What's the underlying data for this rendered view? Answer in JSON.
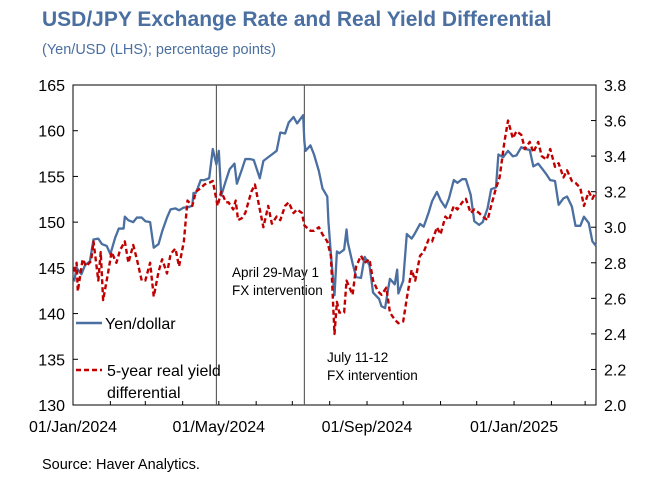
{
  "title": "USD/JPY Exchange Rate and Real Yield Differential",
  "subtitle": "(Yen/USD (LHS); percentage points)",
  "source": "Source: Haver Analytics.",
  "chart_data": {
    "type": "line",
    "x_ticks": [
      "01/Jan/2024",
      "01/May/2024",
      "01/Sep/2024",
      "01/Jan/2025"
    ],
    "x_range": [
      "2024-01-01",
      "2025-03-10"
    ],
    "y_left": {
      "min": 130,
      "max": 165,
      "ticks": [
        "130",
        "135",
        "140",
        "145",
        "150",
        "155",
        "160",
        "165"
      ]
    },
    "y_right": {
      "min": 2.0,
      "max": 3.8,
      "ticks": [
        "2.0",
        "2.2",
        "2.4",
        "2.6",
        "2.8",
        "3.0",
        "3.2",
        "3.4",
        "3.6",
        "3.8"
      ]
    },
    "grid": false,
    "annotations": [
      {
        "date": "2024-04-29",
        "lines": [
          "April 29-May 1",
          "FX intervention"
        ]
      },
      {
        "date": "2024-07-11",
        "lines": [
          "July 11-12",
          "FX intervention"
        ]
      }
    ],
    "series": [
      {
        "name": "Yen/dollar",
        "axis": "left",
        "color": "#4a6fa0",
        "style": "solid",
        "points": [
          [
            "2024-01-02",
            143.5
          ],
          [
            "2024-01-04",
            145.0
          ],
          [
            "2024-01-08",
            144.3
          ],
          [
            "2024-01-11",
            145.3
          ],
          [
            "2024-01-15",
            145.7
          ],
          [
            "2024-01-18",
            148.1
          ],
          [
            "2024-01-22",
            148.2
          ],
          [
            "2024-01-25",
            147.6
          ],
          [
            "2024-01-29",
            147.4
          ],
          [
            "2024-02-01",
            146.5
          ],
          [
            "2024-02-05",
            148.3
          ],
          [
            "2024-02-08",
            149.3
          ],
          [
            "2024-02-12",
            149.3
          ],
          [
            "2024-02-13",
            150.6
          ],
          [
            "2024-02-16",
            150.2
          ],
          [
            "2024-02-20",
            150.0
          ],
          [
            "2024-02-23",
            150.5
          ],
          [
            "2024-02-27",
            150.5
          ],
          [
            "2024-03-01",
            150.1
          ],
          [
            "2024-03-05",
            150.0
          ],
          [
            "2024-03-08",
            147.2
          ],
          [
            "2024-03-12",
            147.6
          ],
          [
            "2024-03-15",
            149.0
          ],
          [
            "2024-03-19",
            150.5
          ],
          [
            "2024-03-22",
            151.4
          ],
          [
            "2024-03-26",
            151.5
          ],
          [
            "2024-03-29",
            151.3
          ],
          [
            "2024-04-02",
            151.6
          ],
          [
            "2024-04-05",
            151.6
          ],
          [
            "2024-04-09",
            151.8
          ],
          [
            "2024-04-10",
            153.2
          ],
          [
            "2024-04-12",
            153.2
          ],
          [
            "2024-04-16",
            154.6
          ],
          [
            "2024-04-19",
            154.6
          ],
          [
            "2024-04-23",
            154.8
          ],
          [
            "2024-04-26",
            158.0
          ],
          [
            "2024-04-29",
            156.3
          ],
          [
            "2024-05-01",
            157.8
          ],
          [
            "2024-05-03",
            152.9
          ],
          [
            "2024-05-07",
            154.6
          ],
          [
            "2024-05-10",
            155.8
          ],
          [
            "2024-05-14",
            156.4
          ],
          [
            "2024-05-16",
            154.2
          ],
          [
            "2024-05-20",
            155.7
          ],
          [
            "2024-05-23",
            156.9
          ],
          [
            "2024-05-27",
            156.9
          ],
          [
            "2024-05-30",
            156.8
          ],
          [
            "2024-06-04",
            154.8
          ],
          [
            "2024-06-07",
            156.7
          ],
          [
            "2024-06-11",
            157.1
          ],
          [
            "2024-06-14",
            157.4
          ],
          [
            "2024-06-18",
            157.8
          ],
          [
            "2024-06-21",
            159.8
          ],
          [
            "2024-06-25",
            159.7
          ],
          [
            "2024-06-28",
            160.9
          ],
          [
            "2024-07-02",
            161.5
          ],
          [
            "2024-07-05",
            160.8
          ],
          [
            "2024-07-10",
            161.7
          ],
          [
            "2024-07-11",
            158.8
          ],
          [
            "2024-07-12",
            157.8
          ],
          [
            "2024-07-16",
            158.4
          ],
          [
            "2024-07-19",
            157.4
          ],
          [
            "2024-07-23",
            155.6
          ],
          [
            "2024-07-26",
            153.7
          ],
          [
            "2024-07-30",
            152.8
          ],
          [
            "2024-07-31",
            150.0
          ],
          [
            "2024-08-02",
            146.5
          ],
          [
            "2024-08-05",
            142.0
          ],
          [
            "2024-08-07",
            146.8
          ],
          [
            "2024-08-09",
            146.6
          ],
          [
            "2024-08-13",
            147.0
          ],
          [
            "2024-08-15",
            149.2
          ],
          [
            "2024-08-16",
            147.8
          ],
          [
            "2024-08-20",
            145.5
          ],
          [
            "2024-08-23",
            144.0
          ],
          [
            "2024-08-27",
            143.9
          ],
          [
            "2024-08-30",
            146.2
          ],
          [
            "2024-09-03",
            145.3
          ],
          [
            "2024-09-06",
            142.3
          ],
          [
            "2024-09-11",
            141.6
          ],
          [
            "2024-09-13",
            140.8
          ],
          [
            "2024-09-16",
            140.6
          ],
          [
            "2024-09-18",
            142.3
          ],
          [
            "2024-09-20",
            143.8
          ],
          [
            "2024-09-24",
            143.2
          ],
          [
            "2024-09-26",
            144.8
          ],
          [
            "2024-09-27",
            142.2
          ],
          [
            "2024-10-01",
            143.6
          ],
          [
            "2024-10-04",
            148.7
          ],
          [
            "2024-10-08",
            148.2
          ],
          [
            "2024-10-10",
            148.6
          ],
          [
            "2024-10-15",
            149.8
          ],
          [
            "2024-10-18",
            149.5
          ],
          [
            "2024-10-22",
            151.0
          ],
          [
            "2024-10-25",
            152.3
          ],
          [
            "2024-10-29",
            153.3
          ],
          [
            "2024-11-01",
            152.4
          ],
          [
            "2024-11-05",
            151.6
          ],
          [
            "2024-11-08",
            152.6
          ],
          [
            "2024-11-12",
            154.6
          ],
          [
            "2024-11-15",
            154.3
          ],
          [
            "2024-11-19",
            154.7
          ],
          [
            "2024-11-22",
            154.7
          ],
          [
            "2024-11-26",
            153.0
          ],
          [
            "2024-11-29",
            150.1
          ],
          [
            "2024-12-03",
            149.7
          ],
          [
            "2024-12-06",
            150.0
          ],
          [
            "2024-12-10",
            151.5
          ],
          [
            "2024-12-13",
            153.6
          ],
          [
            "2024-12-17",
            153.8
          ],
          [
            "2024-12-19",
            157.4
          ],
          [
            "2024-12-23",
            157.1
          ],
          [
            "2024-12-27",
            157.8
          ],
          [
            "2024-12-31",
            157.2
          ],
          [
            "2025-01-03",
            157.3
          ],
          [
            "2025-01-07",
            158.2
          ],
          [
            "2025-01-10",
            158.0
          ],
          [
            "2025-01-14",
            157.9
          ],
          [
            "2025-01-17",
            156.1
          ],
          [
            "2025-01-21",
            156.4
          ],
          [
            "2025-01-24",
            155.9
          ],
          [
            "2025-01-28",
            155.2
          ],
          [
            "2025-01-31",
            154.6
          ],
          [
            "2025-02-04",
            154.5
          ],
          [
            "2025-02-07",
            151.9
          ],
          [
            "2025-02-11",
            152.6
          ],
          [
            "2025-02-14",
            152.8
          ],
          [
            "2025-02-18",
            151.7
          ],
          [
            "2025-02-21",
            149.6
          ],
          [
            "2025-02-25",
            149.6
          ],
          [
            "2025-02-28",
            150.6
          ],
          [
            "2025-03-04",
            149.9
          ],
          [
            "2025-03-07",
            147.9
          ],
          [
            "2025-03-10",
            147.4
          ]
        ]
      },
      {
        "name": "5-year real yield differential",
        "axis": "right",
        "color": "#c00000",
        "style": "dashed",
        "points": [
          [
            "2024-01-02",
            2.75
          ],
          [
            "2024-01-04",
            2.8
          ],
          [
            "2024-01-05",
            2.64
          ],
          [
            "2024-01-09",
            2.82
          ],
          [
            "2024-01-12",
            2.78
          ],
          [
            "2024-01-16",
            2.81
          ],
          [
            "2024-01-18",
            2.92
          ],
          [
            "2024-01-22",
            2.7
          ],
          [
            "2024-01-24",
            2.86
          ],
          [
            "2024-01-26",
            2.59
          ],
          [
            "2024-01-30",
            2.74
          ],
          [
            "2024-02-02",
            2.86
          ],
          [
            "2024-02-06",
            2.8
          ],
          [
            "2024-02-09",
            2.87
          ],
          [
            "2024-02-13",
            2.92
          ],
          [
            "2024-02-16",
            2.8
          ],
          [
            "2024-02-20",
            2.9
          ],
          [
            "2024-02-23",
            2.82
          ],
          [
            "2024-02-27",
            2.7
          ],
          [
            "2024-03-01",
            2.7
          ],
          [
            "2024-03-05",
            2.8
          ],
          [
            "2024-03-08",
            2.61
          ],
          [
            "2024-03-12",
            2.75
          ],
          [
            "2024-03-15",
            2.82
          ],
          [
            "2024-03-19",
            2.74
          ],
          [
            "2024-03-22",
            2.85
          ],
          [
            "2024-03-26",
            2.88
          ],
          [
            "2024-03-29",
            2.78
          ],
          [
            "2024-04-02",
            2.92
          ],
          [
            "2024-04-05",
            3.15
          ],
          [
            "2024-04-09",
            3.12
          ],
          [
            "2024-04-12",
            3.2
          ],
          [
            "2024-04-16",
            3.22
          ],
          [
            "2024-04-19",
            3.24
          ],
          [
            "2024-04-23",
            3.25
          ],
          [
            "2024-04-26",
            3.26
          ],
          [
            "2024-04-30",
            3.12
          ],
          [
            "2024-05-03",
            3.2
          ],
          [
            "2024-05-07",
            3.14
          ],
          [
            "2024-05-09",
            3.14
          ],
          [
            "2024-05-13",
            3.1
          ],
          [
            "2024-05-15",
            3.15
          ],
          [
            "2024-05-17",
            3.04
          ],
          [
            "2024-05-20",
            3.05
          ],
          [
            "2024-05-23",
            3.08
          ],
          [
            "2024-05-28",
            3.2
          ],
          [
            "2024-05-31",
            3.24
          ],
          [
            "2024-06-04",
            3.1
          ],
          [
            "2024-06-07",
            3.0
          ],
          [
            "2024-06-11",
            3.12
          ],
          [
            "2024-06-14",
            3.02
          ],
          [
            "2024-06-18",
            3.06
          ],
          [
            "2024-06-21",
            3.04
          ],
          [
            "2024-06-25",
            3.12
          ],
          [
            "2024-06-28",
            3.14
          ],
          [
            "2024-07-02",
            3.08
          ],
          [
            "2024-07-05",
            3.1
          ],
          [
            "2024-07-09",
            3.08
          ],
          [
            "2024-07-11",
            3.01
          ],
          [
            "2024-07-16",
            2.98
          ],
          [
            "2024-07-19",
            2.98
          ],
          [
            "2024-07-23",
            3.0
          ],
          [
            "2024-07-26",
            2.96
          ],
          [
            "2024-07-30",
            2.92
          ],
          [
            "2024-08-02",
            2.84
          ],
          [
            "2024-08-05",
            2.4
          ],
          [
            "2024-08-07",
            2.58
          ],
          [
            "2024-08-09",
            2.52
          ],
          [
            "2024-08-13",
            2.52
          ],
          [
            "2024-08-15",
            2.7
          ],
          [
            "2024-08-20",
            2.62
          ],
          [
            "2024-08-23",
            2.78
          ],
          [
            "2024-08-27",
            2.84
          ],
          [
            "2024-08-30",
            2.8
          ],
          [
            "2024-09-03",
            2.82
          ],
          [
            "2024-09-06",
            2.7
          ],
          [
            "2024-09-10",
            2.64
          ],
          [
            "2024-09-13",
            2.62
          ],
          [
            "2024-09-17",
            2.66
          ],
          [
            "2024-09-20",
            2.52
          ],
          [
            "2024-09-24",
            2.48
          ],
          [
            "2024-09-27",
            2.46
          ],
          [
            "2024-10-01",
            2.47
          ],
          [
            "2024-10-04",
            2.6
          ],
          [
            "2024-10-08",
            2.76
          ],
          [
            "2024-10-11",
            2.7
          ],
          [
            "2024-10-15",
            2.84
          ],
          [
            "2024-10-18",
            2.86
          ],
          [
            "2024-10-22",
            2.93
          ],
          [
            "2024-10-25",
            2.92
          ],
          [
            "2024-10-29",
            3.0
          ],
          [
            "2024-11-01",
            2.96
          ],
          [
            "2024-11-05",
            3.06
          ],
          [
            "2024-11-08",
            3.04
          ],
          [
            "2024-11-12",
            3.12
          ],
          [
            "2024-11-15",
            3.1
          ],
          [
            "2024-11-19",
            3.14
          ],
          [
            "2024-11-22",
            3.16
          ],
          [
            "2024-11-26",
            3.08
          ],
          [
            "2024-11-29",
            3.1
          ],
          [
            "2024-12-03",
            3.08
          ],
          [
            "2024-12-06",
            3.06
          ],
          [
            "2024-12-10",
            3.04
          ],
          [
            "2024-12-13",
            3.12
          ],
          [
            "2024-12-17",
            3.22
          ],
          [
            "2024-12-20",
            3.28
          ],
          [
            "2024-12-24",
            3.48
          ],
          [
            "2024-12-27",
            3.6
          ],
          [
            "2024-12-31",
            3.5
          ],
          [
            "2025-01-03",
            3.54
          ],
          [
            "2025-01-07",
            3.52
          ],
          [
            "2025-01-10",
            3.44
          ],
          [
            "2025-01-14",
            3.48
          ],
          [
            "2025-01-17",
            3.42
          ],
          [
            "2025-01-21",
            3.48
          ],
          [
            "2025-01-24",
            3.4
          ],
          [
            "2025-01-28",
            3.38
          ],
          [
            "2025-01-31",
            3.44
          ],
          [
            "2025-02-04",
            3.34
          ],
          [
            "2025-02-07",
            3.36
          ],
          [
            "2025-02-11",
            3.28
          ],
          [
            "2025-02-14",
            3.32
          ],
          [
            "2025-02-18",
            3.26
          ],
          [
            "2025-02-21",
            3.25
          ],
          [
            "2025-02-25",
            3.22
          ],
          [
            "2025-02-28",
            3.12
          ],
          [
            "2025-03-04",
            3.2
          ],
          [
            "2025-03-07",
            3.16
          ],
          [
            "2025-03-10",
            3.2
          ]
        ]
      }
    ]
  }
}
